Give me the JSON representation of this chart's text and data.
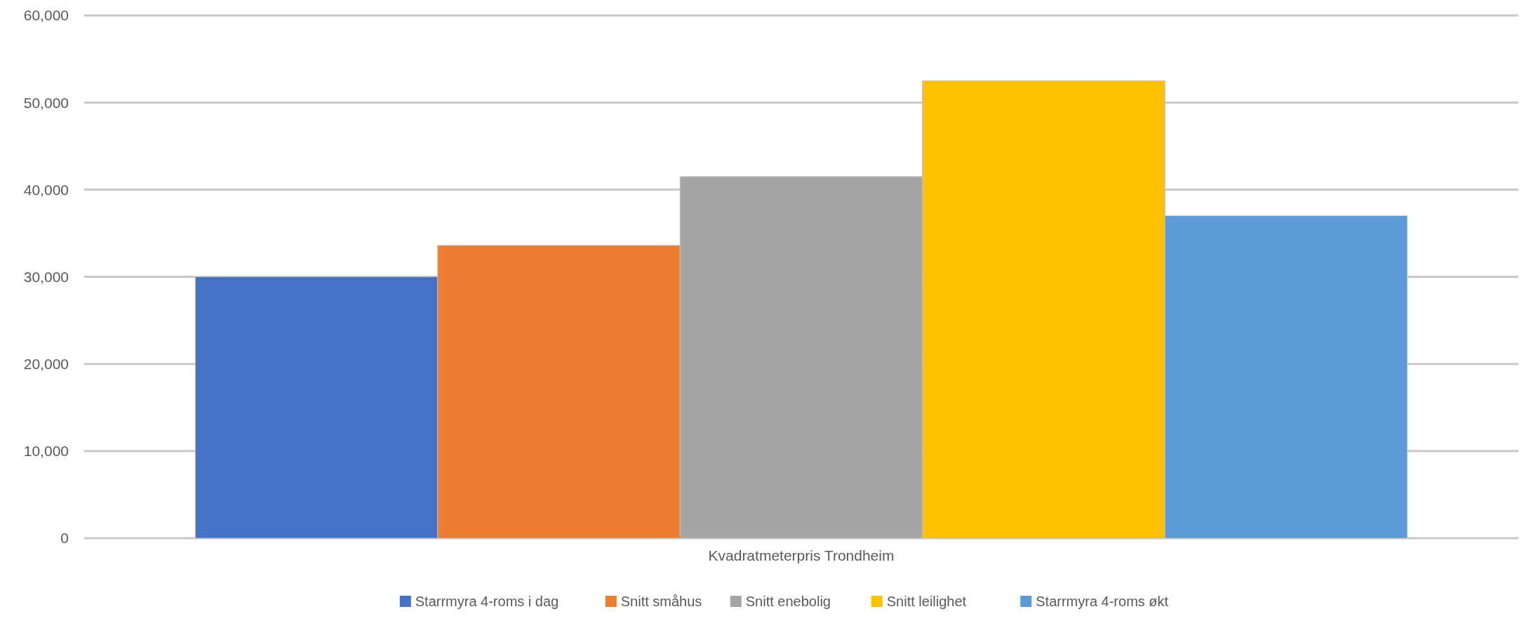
{
  "chart_data": {
    "type": "bar",
    "categories": [
      "Kvadratmeterpris Trondheim"
    ],
    "series": [
      {
        "name": "Starrmyra 4-roms i dag",
        "color": "#4472c4",
        "values": [
          30000
        ]
      },
      {
        "name": "Snitt småhus",
        "color": "#ed7d31",
        "values": [
          33600
        ]
      },
      {
        "name": "Snitt enebolig",
        "color": "#a5a5a5",
        "values": [
          41500
        ]
      },
      {
        "name": "Snitt leilighet",
        "color": "#ffc000",
        "values": [
          52500
        ]
      },
      {
        "name": "Starrmyra 4-roms økt",
        "color": "#5b9bd5",
        "values": [
          37000
        ]
      }
    ],
    "ylim": [
      0,
      60000
    ],
    "yticks": [
      {
        "value": 0,
        "label": "0"
      },
      {
        "value": 10000,
        "label": "10,000"
      },
      {
        "value": 20000,
        "label": "20,000"
      },
      {
        "value": 30000,
        "label": "30,000"
      },
      {
        "value": 40000,
        "label": "40,000"
      },
      {
        "value": 50000,
        "label": "50,000"
      },
      {
        "value": 60000,
        "label": "60,000"
      }
    ],
    "grid": "y",
    "legend": "bottom"
  }
}
